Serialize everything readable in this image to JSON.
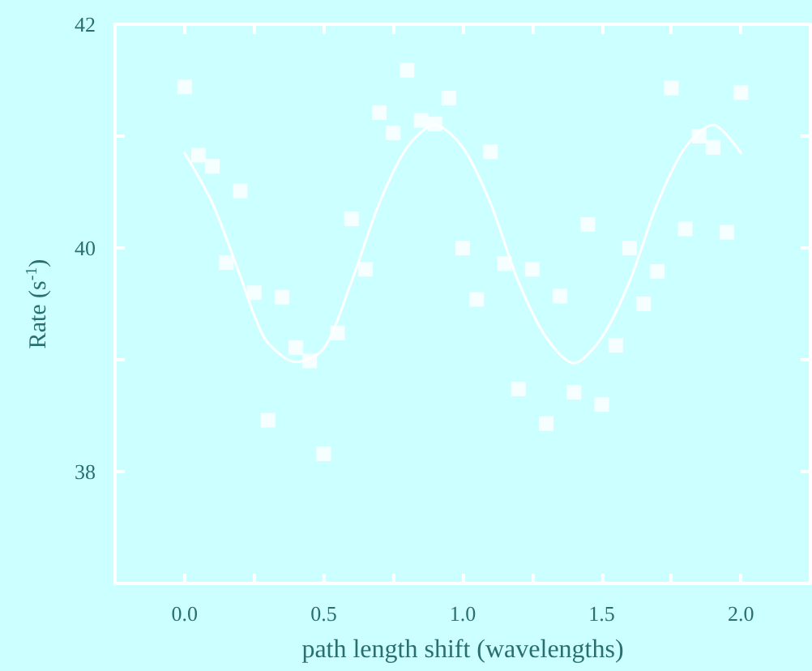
{
  "chart_data": {
    "type": "scatter",
    "xlabel": "path length shift (wavelengths)",
    "ylabel": "Rate (s$^{-1}$)",
    "xlim": [
      -0.25,
      2.25
    ],
    "ylim": [
      37,
      42
    ],
    "xticks": [
      {
        "value": 0,
        "label": "0.0"
      },
      {
        "value": 0.25,
        "label": null
      },
      {
        "value": 0.5,
        "label": "0.5"
      },
      {
        "value": 0.75,
        "label": null
      },
      {
        "value": 1,
        "label": "1.0"
      },
      {
        "value": 1.25,
        "label": null
      },
      {
        "value": 1.5,
        "label": "1.5"
      },
      {
        "value": 1.75,
        "label": null
      },
      {
        "value": 2,
        "label": "2.0"
      }
    ],
    "yticks": [
      {
        "value": 38,
        "label": "38"
      },
      {
        "value": 39,
        "label": null
      },
      {
        "value": 40,
        "label": "40"
      },
      {
        "value": 41,
        "label": null
      },
      {
        "value": 42,
        "label": "42"
      }
    ],
    "grid": false,
    "series": [
      {
        "marker": "square",
        "color": "#ffffff",
        "x": [
          0,
          0.05,
          0.1,
          0.15,
          0.2,
          0.25,
          0.3,
          0.35,
          0.4,
          0.45,
          0.5,
          0.55,
          0.6,
          0.65,
          0.7,
          0.75,
          0.8,
          0.85,
          0.9,
          0.95,
          1,
          1.05,
          1.1,
          1.15,
          1.2,
          1.25,
          1.3,
          1.35,
          1.4,
          1.45,
          1.5,
          1.55,
          1.6,
          1.65,
          1.7,
          1.75,
          1.8,
          1.85,
          1.9,
          1.95,
          2
        ],
        "values": [
          41.44,
          40.83,
          40.73,
          39.87,
          40.51,
          39.6,
          38.46,
          39.56,
          39.11,
          38.99,
          38.16,
          39.24,
          40.26,
          39.81,
          41.21,
          41.03,
          41.59,
          41.14,
          41.11,
          41.34,
          40.0,
          39.54,
          40.86,
          39.86,
          38.74,
          39.81,
          38.43,
          39.57,
          38.71,
          40.21,
          38.6,
          39.13,
          40.0,
          39.5,
          39.79,
          41.43,
          40.17,
          41.0,
          40.9,
          40.14,
          41.39
        ]
      },
      {
        "type": "line",
        "marker": "none",
        "line_style": "solid",
        "color": "#ffffff",
        "x": [
          0,
          0.1,
          0.2,
          0.25,
          0.3,
          0.4,
          0.5,
          0.6,
          0.7,
          0.8,
          0.9,
          1,
          1.1,
          1.2,
          1.3,
          1.4,
          1.5,
          1.6,
          1.7,
          1.8,
          1.9,
          2
        ],
        "values": [
          40.85,
          40.4,
          39.75,
          39.4,
          39.15,
          38.98,
          39.1,
          39.7,
          40.4,
          40.9,
          41.1,
          40.9,
          40.4,
          39.7,
          39.2,
          38.97,
          39.2,
          39.7,
          40.4,
          40.9,
          41.1,
          40.85
        ]
      }
    ]
  }
}
